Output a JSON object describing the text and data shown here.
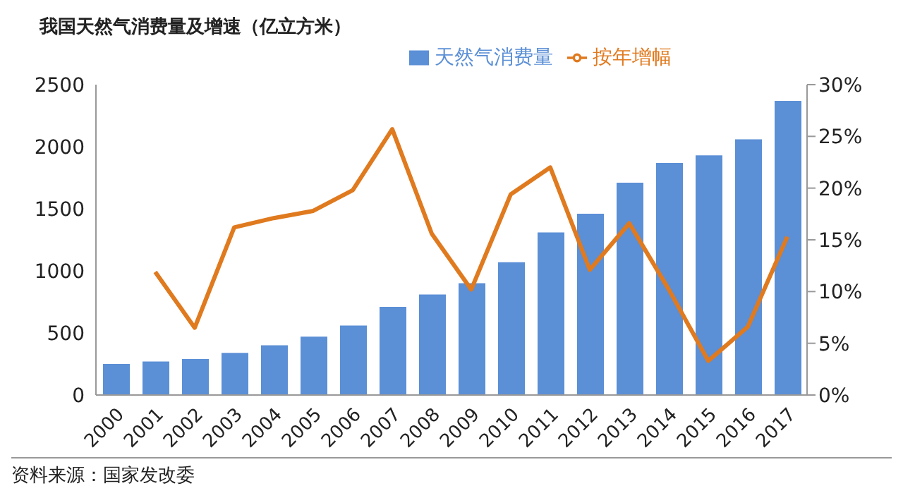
{
  "chart_data": {
    "type": "bar",
    "title": "我国天然气消费量及增速（亿立方米）",
    "categories": [
      "2000",
      "2001",
      "2002",
      "2003",
      "2004",
      "2005",
      "2006",
      "2007",
      "2008",
      "2009",
      "2010",
      "2011",
      "2012",
      "2013",
      "2014",
      "2015",
      "2016",
      "2017"
    ],
    "series": [
      {
        "name": "天然气消费量",
        "color": "#5b8fd6",
        "values": [
          250,
          270,
          290,
          340,
          400,
          470,
          560,
          710,
          810,
          900,
          1070,
          1310,
          1460,
          1710,
          1870,
          1930,
          2060,
          2370
        ]
      },
      {
        "name": "按年增幅",
        "type": "line",
        "axis": "y2",
        "color": "#e07a1f",
        "values": [
          null,
          11.9,
          6.5,
          16.2,
          17.1,
          17.8,
          19.8,
          25.7,
          15.6,
          10.2,
          19.4,
          22.0,
          12.1,
          16.6,
          10.2,
          3.3,
          6.6,
          15.3
        ]
      }
    ],
    "ylim": [
      0,
      2500
    ],
    "yticks": [
      0,
      500,
      1000,
      1500,
      2000,
      2500
    ],
    "y2lim": [
      0,
      30
    ],
    "y2ticks": [
      {
        "value": 0,
        "label": "0%"
      },
      {
        "value": 5,
        "label": "5%"
      },
      {
        "value": 10,
        "label": "10%"
      },
      {
        "value": 15,
        "label": "15%"
      },
      {
        "value": 20,
        "label": "20%"
      },
      {
        "value": 25,
        "label": "25%"
      },
      {
        "value": 30,
        "label": "30%"
      }
    ],
    "grid": false,
    "legend": "top",
    "marker": "none",
    "line_style": "solid",
    "annotations": [
      "资料来源：国家发改委"
    ]
  }
}
